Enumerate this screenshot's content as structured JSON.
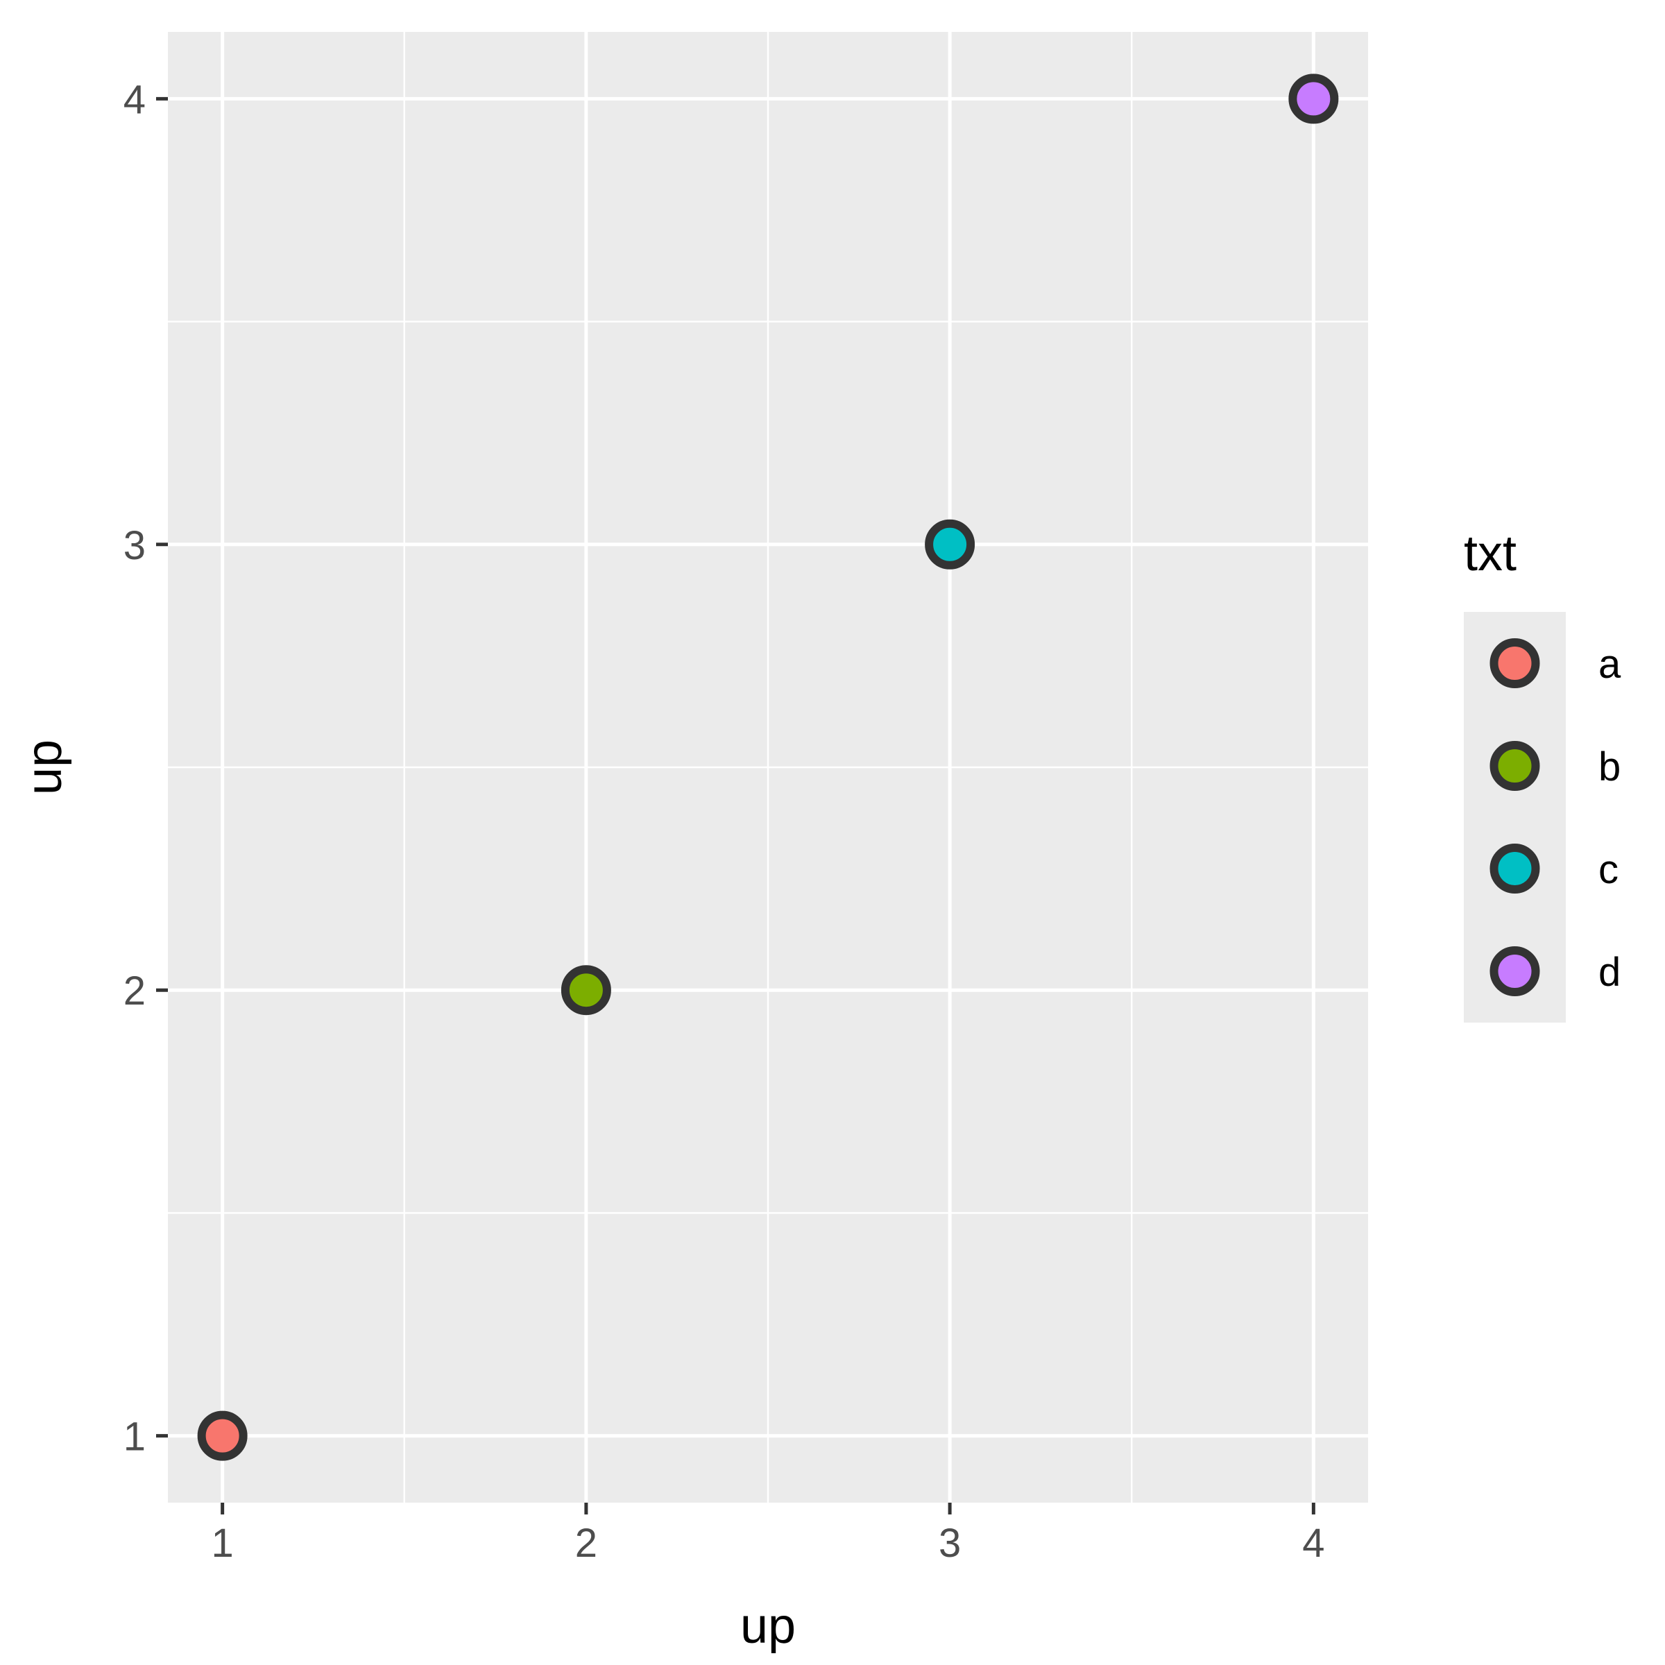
{
  "chart_data": {
    "type": "scatter",
    "title": "",
    "xlabel": "up",
    "ylabel": "up",
    "xlim": [
      0.85,
      4.15
    ],
    "ylim": [
      0.85,
      4.15
    ],
    "x_ticks": [
      1,
      2,
      3,
      4
    ],
    "y_ticks": [
      1,
      2,
      3,
      4
    ],
    "grid": true,
    "legend_position": "right",
    "legend_title": "txt",
    "panel_background": "#ebebeb",
    "grid_color": "#ffffff",
    "point_outline_color": "#333333",
    "series": [
      {
        "name": "a",
        "color": "#F8766D",
        "x": 1,
        "y": 1
      },
      {
        "name": "b",
        "color": "#7CAE00",
        "x": 2,
        "y": 2
      },
      {
        "name": "c",
        "color": "#00BFC4",
        "x": 3,
        "y": 3
      },
      {
        "name": "d",
        "color": "#C77CFF",
        "x": 4,
        "y": 4
      }
    ]
  }
}
